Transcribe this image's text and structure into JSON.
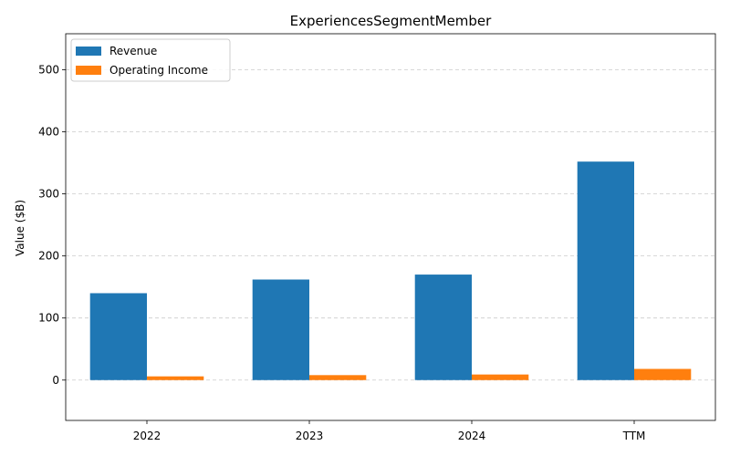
{
  "chart_data": {
    "type": "bar",
    "title": "ExperiencesSegmentMember",
    "xlabel": "",
    "ylabel": "Value ($B)",
    "categories": [
      "2022",
      "2023",
      "2024",
      "TTM"
    ],
    "series": [
      {
        "name": "Revenue",
        "values": [
          140,
          162,
          170,
          352
        ],
        "color": "#1f77b4"
      },
      {
        "name": "Operating Income",
        "values": [
          6,
          8,
          9,
          18
        ],
        "color": "#ff7f0e"
      }
    ],
    "ylim": [
      -65,
      558
    ],
    "yticks": [
      0,
      100,
      200,
      300,
      400,
      500
    ],
    "grid": true,
    "legend_position": "top-left"
  }
}
